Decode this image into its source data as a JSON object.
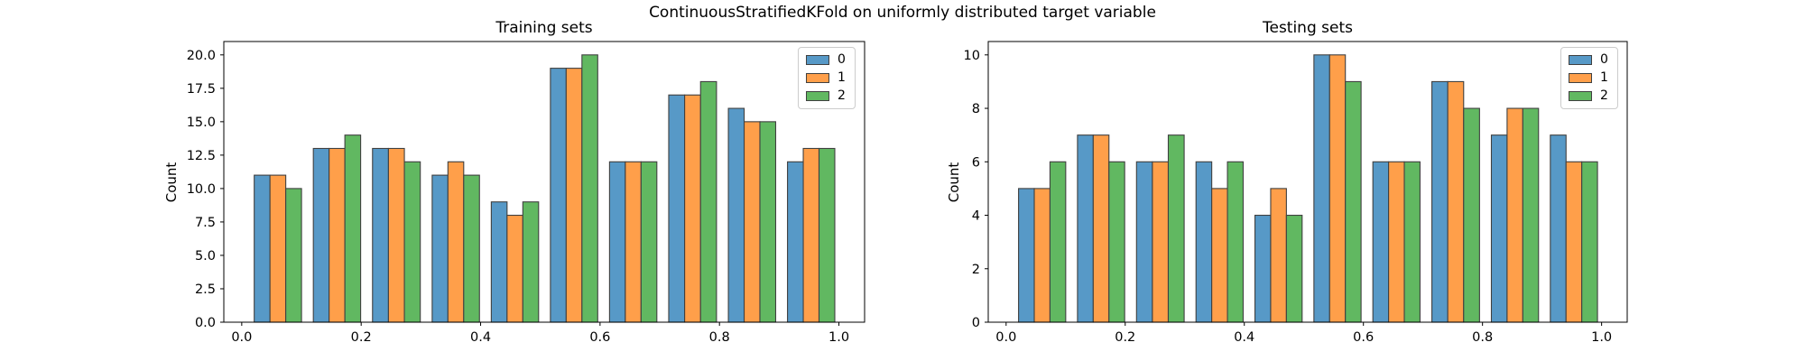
{
  "figure_title": "ContinuousStratifiedKFold on uniformly distributed target variable",
  "style": {
    "background": "#ffffff",
    "bar_edge_color": "#404040",
    "axis_color": "#000000",
    "legend_border": "#cccccc",
    "series_colors": [
      "#5799c7",
      "#ff9f4a",
      "#61b861"
    ]
  },
  "chart_data": [
    {
      "type": "bar",
      "subtype": "grouped-histogram",
      "title": "Training sets",
      "xlabel": "",
      "ylabel": "Count",
      "bin_edges": [
        0.011,
        0.11,
        0.209,
        0.309,
        0.408,
        0.507,
        0.606,
        0.705,
        0.805,
        0.904,
        1.003
      ],
      "bin_centers": [
        0.061,
        0.16,
        0.259,
        0.358,
        0.458,
        0.557,
        0.656,
        0.755,
        0.854,
        0.954
      ],
      "series": [
        {
          "name": "0",
          "color": "#5799c7",
          "values": [
            11,
            13,
            13,
            11,
            9,
            19,
            12,
            17,
            16,
            12
          ]
        },
        {
          "name": "1",
          "color": "#ff9f4a",
          "values": [
            11,
            13,
            13,
            12,
            8,
            19,
            12,
            17,
            15,
            13
          ]
        },
        {
          "name": "2",
          "color": "#61b861",
          "values": [
            10,
            14,
            12,
            11,
            9,
            20,
            12,
            18,
            15,
            13
          ]
        }
      ],
      "xlim": [
        -0.03,
        1.043
      ],
      "ylim": [
        0,
        21
      ],
      "xtick_values": [
        0.0,
        0.2,
        0.4,
        0.6,
        0.8,
        1.0
      ],
      "xtick_labels": [
        "0.0",
        "0.2",
        "0.4",
        "0.6",
        "0.8",
        "1.0"
      ],
      "ytick_values": [
        0,
        2.5,
        5,
        7.5,
        10,
        12.5,
        15,
        17.5,
        20
      ],
      "ytick_labels": [
        "0.0",
        "2.5",
        "5.0",
        "7.5",
        "10.0",
        "12.5",
        "15.0",
        "17.5",
        "20.0"
      ],
      "grid": false,
      "legend_position": "upper right",
      "legend_labels": [
        "0",
        "1",
        "2"
      ]
    },
    {
      "type": "bar",
      "subtype": "grouped-histogram",
      "title": "Testing sets",
      "xlabel": "",
      "ylabel": "Count",
      "bin_edges": [
        0.011,
        0.11,
        0.209,
        0.309,
        0.408,
        0.507,
        0.606,
        0.705,
        0.805,
        0.904,
        1.003
      ],
      "bin_centers": [
        0.061,
        0.16,
        0.259,
        0.358,
        0.458,
        0.557,
        0.656,
        0.755,
        0.854,
        0.954
      ],
      "series": [
        {
          "name": "0",
          "color": "#5799c7",
          "values": [
            5,
            7,
            6,
            6,
            4,
            10,
            6,
            9,
            7,
            7
          ]
        },
        {
          "name": "1",
          "color": "#ff9f4a",
          "values": [
            5,
            7,
            6,
            5,
            5,
            10,
            6,
            9,
            8,
            6
          ]
        },
        {
          "name": "2",
          "color": "#61b861",
          "values": [
            6,
            6,
            7,
            6,
            4,
            9,
            6,
            8,
            8,
            6
          ]
        }
      ],
      "xlim": [
        -0.03,
        1.043
      ],
      "ylim": [
        0,
        10.5
      ],
      "xtick_values": [
        0.0,
        0.2,
        0.4,
        0.6,
        0.8,
        1.0
      ],
      "xtick_labels": [
        "0.0",
        "0.2",
        "0.4",
        "0.6",
        "0.8",
        "1.0"
      ],
      "ytick_values": [
        0,
        2,
        4,
        6,
        8,
        10
      ],
      "ytick_labels": [
        "0",
        "2",
        "4",
        "6",
        "8",
        "10"
      ],
      "grid": false,
      "legend_position": "upper right",
      "legend_labels": [
        "0",
        "1",
        "2"
      ]
    }
  ]
}
